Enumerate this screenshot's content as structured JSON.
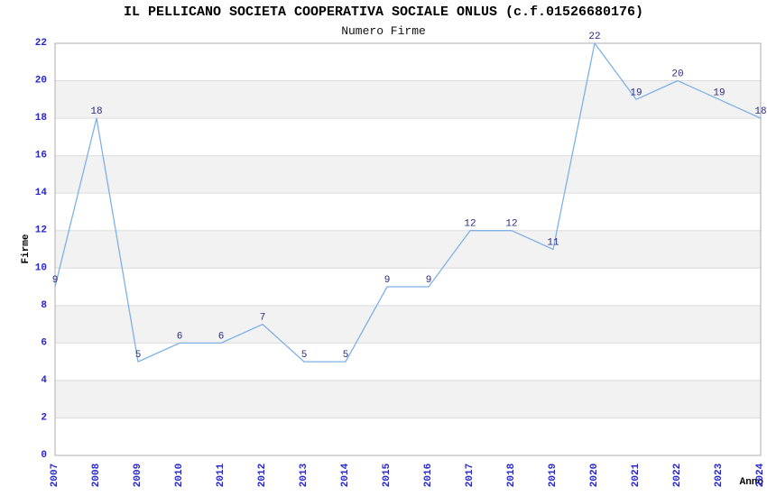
{
  "chart_data": {
    "type": "line",
    "title": "IL PELLICANO SOCIETA COOPERATIVA SOCIALE ONLUS (c.f.01526680176)",
    "subtitle": "Numero Firme",
    "xlabel": "Anno",
    "ylabel": "Firme",
    "categories": [
      "2007",
      "2008",
      "2009",
      "2010",
      "2011",
      "2012",
      "2013",
      "2014",
      "2015",
      "2016",
      "2017",
      "2018",
      "2019",
      "2020",
      "2021",
      "2022",
      "2023",
      "2024"
    ],
    "series": [
      {
        "name": "Numero Firme",
        "values": [
          9,
          18,
          5,
          6,
          6,
          7,
          5,
          5,
          9,
          9,
          12,
          12,
          11,
          22,
          19,
          20,
          19,
          18
        ]
      }
    ],
    "ylim": [
      0,
      22
    ],
    "ytick_step": 2,
    "grid": true,
    "band_fill": true,
    "legend_position": "none",
    "point_labels_visible": true,
    "colors": {
      "line": "#7eb1e6",
      "point_label": "#2b2b7e",
      "tick_label": "#2626cc",
      "title": "#000000",
      "band": "#f2f2f2",
      "gridline": "#dcdcdc",
      "plot_border": "#aeaeae",
      "background": "#ffffff"
    }
  }
}
